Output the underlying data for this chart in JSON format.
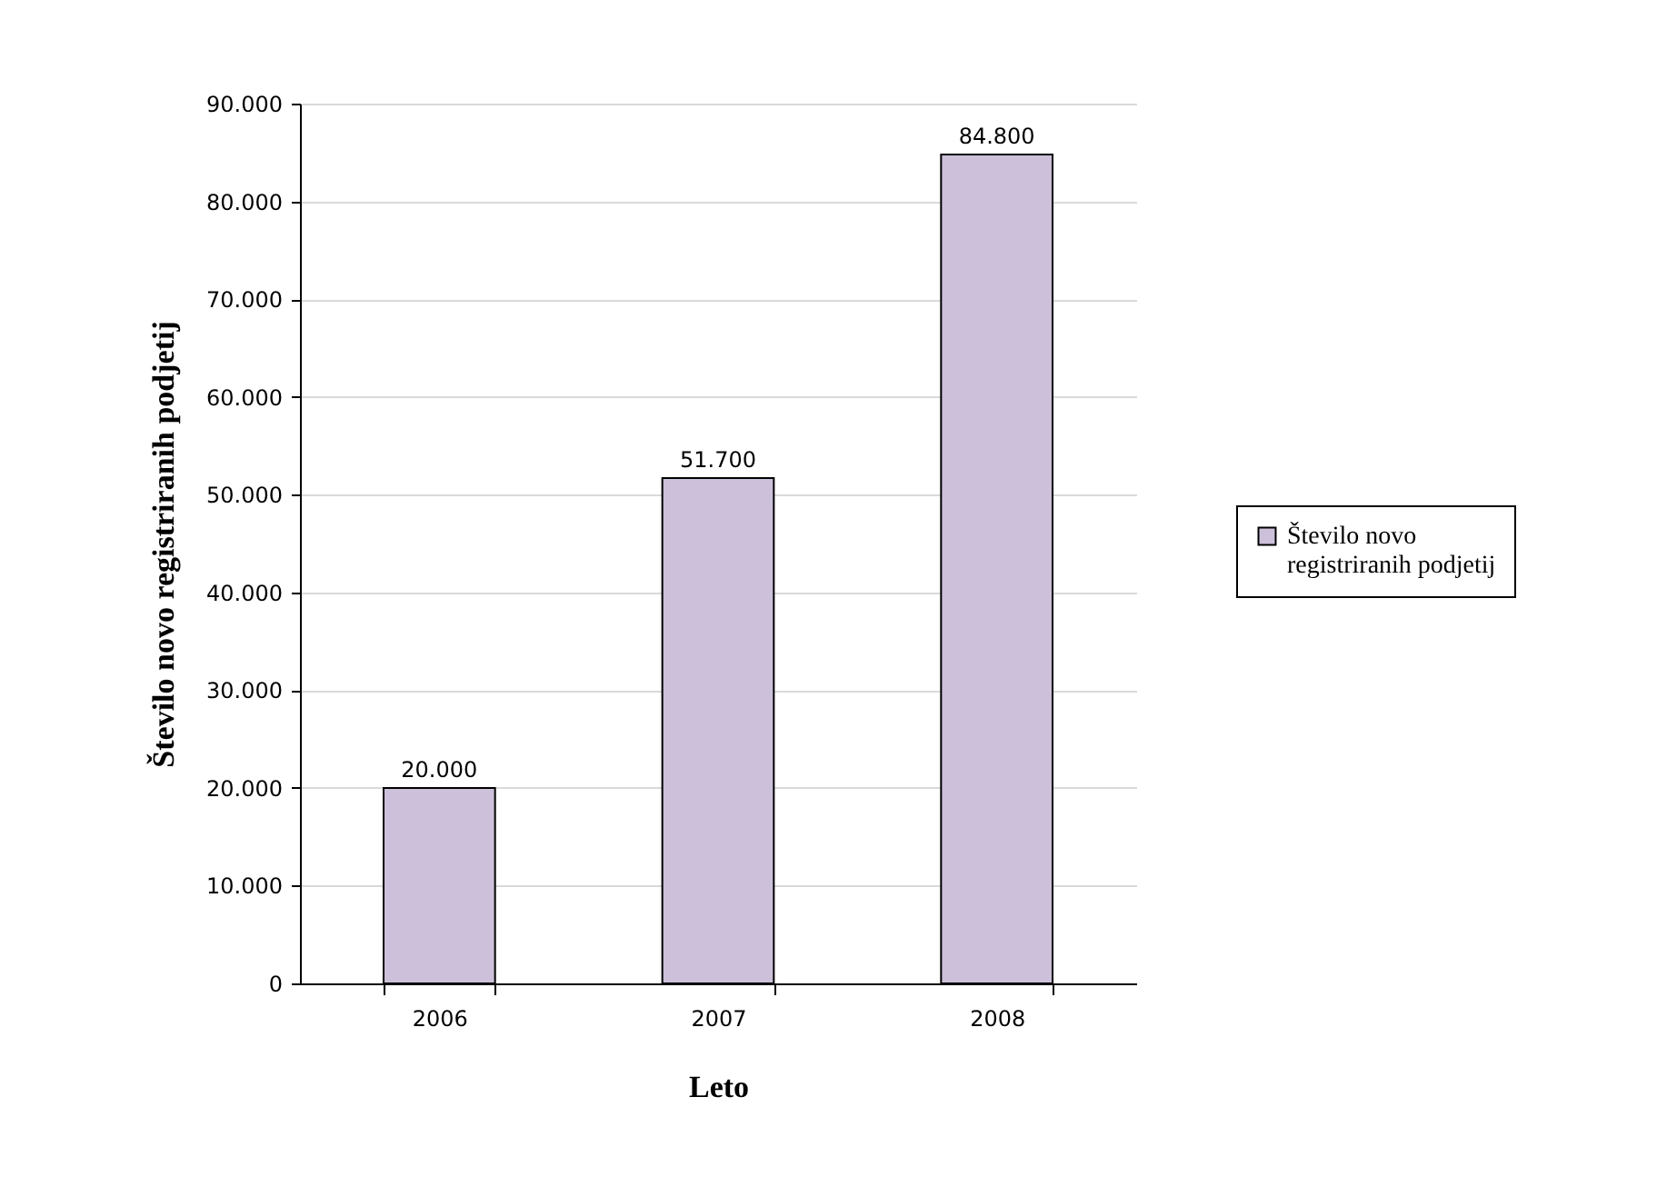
{
  "chart_data": {
    "type": "bar",
    "xlabel": "Leto",
    "ylabel": "Število novo registriranih podjetij",
    "categories": [
      "2006",
      "2007",
      "2008"
    ],
    "series": [
      {
        "name": "Število novo registriranih podjetij",
        "color": "#ccc0da",
        "values": [
          20000,
          51700,
          84800
        ],
        "value_labels": [
          "20.000",
          "51.700",
          "84.800"
        ]
      }
    ],
    "ylim": [
      0,
      90000
    ],
    "yticks": [
      0,
      {
        "value": 10000,
        "label": "10.000"
      },
      {
        "value": 20000,
        "label": "20.000"
      },
      {
        "value": 30000,
        "label": "30.000"
      },
      {
        "value": 40000,
        "label": "40.000"
      },
      {
        "value": 50000,
        "label": "50.000"
      },
      {
        "value": 60000,
        "label": "60.000"
      },
      {
        "value": 70000,
        "label": "70.000"
      },
      {
        "value": 80000,
        "label": "80.000"
      },
      {
        "value": 90000,
        "label": "90.000"
      }
    ],
    "grid": "y",
    "legend": "right"
  }
}
